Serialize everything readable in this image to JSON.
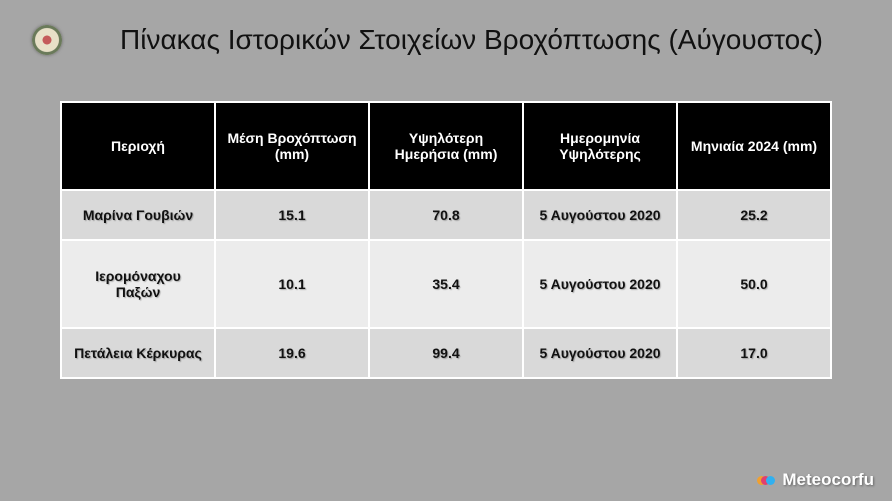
{
  "title": "Πίνακας Ιστορικών Στοιχείων Βροχόπτωσης (Αύγουστος)",
  "table": {
    "headers": [
      "Περιοχή",
      "Μέση Βροχόπτωση (mm)",
      "Υψηλότερη Ημερήσια (mm)",
      "Ημερομηνία Υψηλότερης",
      "Μηνιαία 2024 (mm)"
    ],
    "rows": [
      [
        "Μαρίνα Γουβιών",
        "15.1",
        "70.8",
        "5 Αυγούστου 2020",
        "25.2"
      ],
      [
        "Ιερομόναχου Παξών",
        "10.1",
        "35.4",
        "5 Αυγούστου 2020",
        "50.0"
      ],
      [
        "Πετάλεια Κέρκυρας",
        "19.6",
        "99.4",
        "5 Αυγούστου 2020",
        "17.0"
      ]
    ]
  },
  "brand": {
    "name": "Meteocorfu",
    "icon": "meteocorfu-logo-icon"
  },
  "colors": {
    "background": "#a6a6a6",
    "header": "#000000",
    "row_dark": "#d9d9d9",
    "row_light": "#ececec"
  }
}
